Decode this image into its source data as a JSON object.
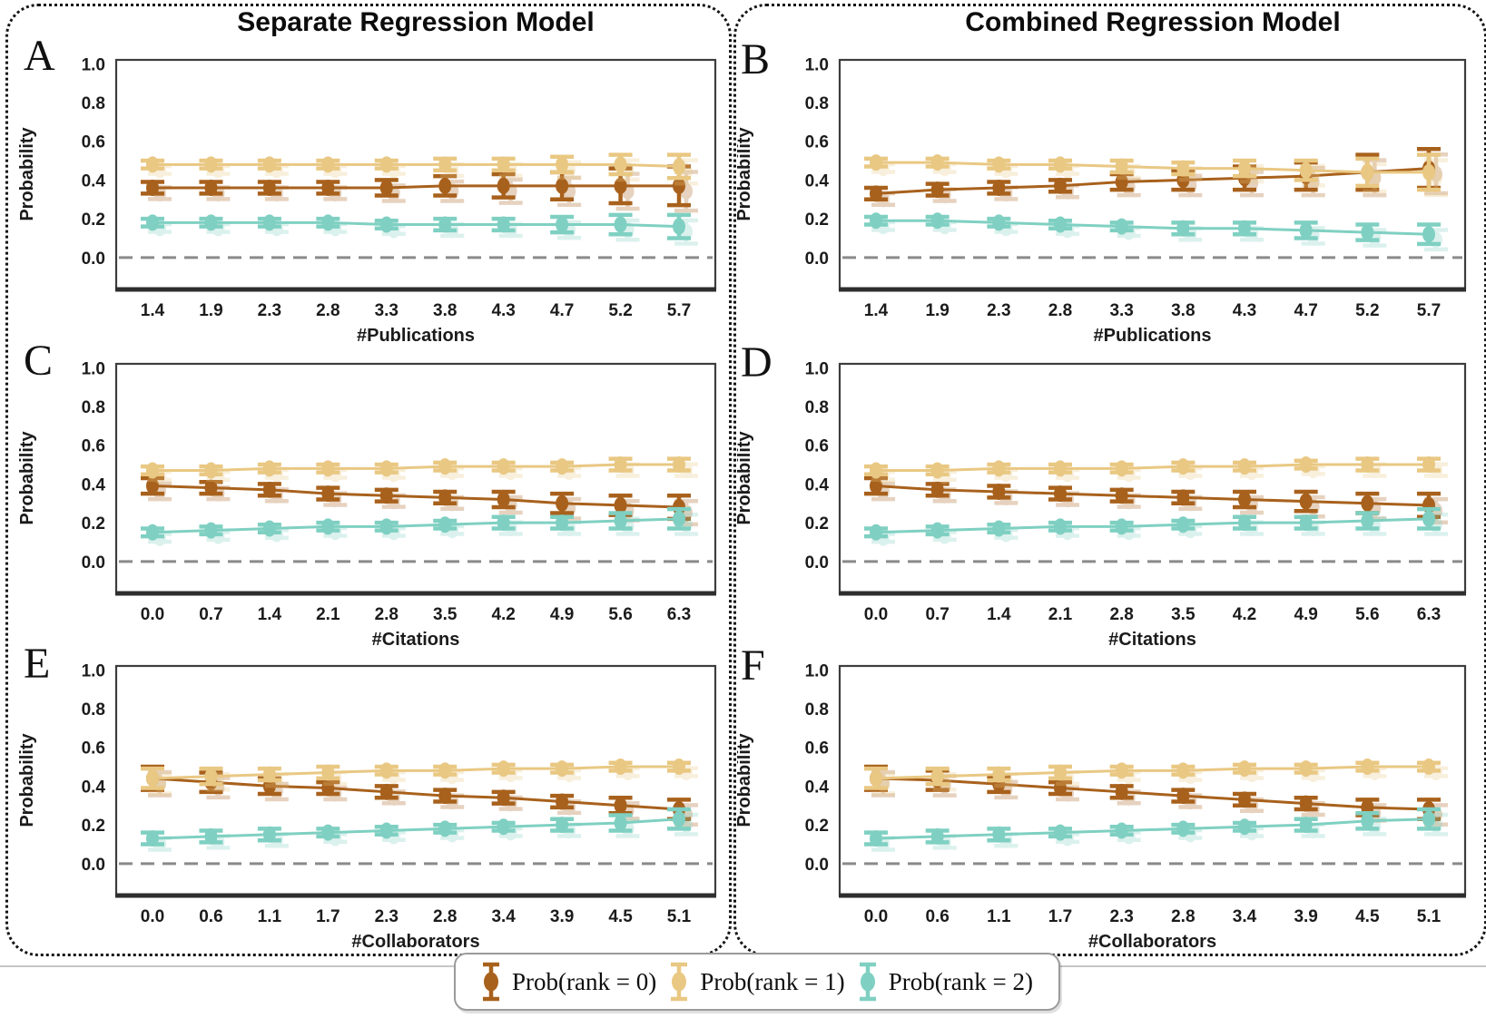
{
  "figure": {
    "column_titles": [
      "Separate Regression Model",
      "Combined Regression Model"
    ]
  },
  "y_axis": {
    "label": "Probability",
    "ticks": [
      "1.0",
      "0.8",
      "0.6",
      "0.4",
      "0.2",
      "0.0"
    ],
    "range": [
      -0.16,
      1.02
    ],
    "zero_line": "dashed"
  },
  "legend": {
    "items": [
      {
        "key": "rank0",
        "label": "Prob(rank = 0)",
        "color": "#A8611C"
      },
      {
        "key": "rank1",
        "label": "Prob(rank = 1)",
        "color": "#E9C883"
      },
      {
        "key": "rank2",
        "label": "Prob(rank = 2)",
        "color": "#7FD0C2"
      }
    ]
  },
  "chart_data": [
    {
      "type": "line",
      "letter": "A",
      "model": "Separate",
      "xlabel": "#Publications",
      "x": [
        "1.4",
        "1.9",
        "2.3",
        "2.8",
        "3.3",
        "3.8",
        "4.3",
        "4.7",
        "5.2",
        "5.7"
      ],
      "series": [
        {
          "key": "rank0",
          "name": "Prob(rank = 0)",
          "color": "#A8611C",
          "values": [
            0.36,
            0.36,
            0.36,
            0.36,
            0.36,
            0.37,
            0.37,
            0.37,
            0.37,
            0.37
          ],
          "errors": [
            0.03,
            0.03,
            0.03,
            0.03,
            0.04,
            0.05,
            0.06,
            0.07,
            0.09,
            0.1
          ]
        },
        {
          "key": "rank1",
          "name": "Prob(rank = 1)",
          "color": "#E9C883",
          "values": [
            0.48,
            0.48,
            0.48,
            0.48,
            0.48,
            0.48,
            0.48,
            0.48,
            0.48,
            0.47
          ],
          "errors": [
            0.02,
            0.02,
            0.02,
            0.02,
            0.02,
            0.03,
            0.03,
            0.04,
            0.05,
            0.06
          ]
        },
        {
          "key": "rank2",
          "name": "Prob(rank = 2)",
          "color": "#7FD0C2",
          "values": [
            0.18,
            0.18,
            0.18,
            0.18,
            0.17,
            0.17,
            0.17,
            0.17,
            0.17,
            0.16
          ],
          "errors": [
            0.02,
            0.02,
            0.02,
            0.02,
            0.02,
            0.03,
            0.03,
            0.04,
            0.05,
            0.06
          ]
        }
      ]
    },
    {
      "type": "line",
      "letter": "B",
      "model": "Combined",
      "xlabel": "#Publications",
      "x": [
        "1.4",
        "1.9",
        "2.3",
        "2.8",
        "3.3",
        "3.8",
        "4.3",
        "4.7",
        "5.2",
        "5.7"
      ],
      "series": [
        {
          "key": "rank0",
          "name": "Prob(rank = 0)",
          "color": "#A8611C",
          "values": [
            0.33,
            0.35,
            0.36,
            0.37,
            0.39,
            0.4,
            0.41,
            0.42,
            0.44,
            0.46
          ],
          "errors": [
            0.03,
            0.03,
            0.03,
            0.03,
            0.04,
            0.05,
            0.06,
            0.07,
            0.09,
            0.1
          ]
        },
        {
          "key": "rank1",
          "name": "Prob(rank = 1)",
          "color": "#E9C883",
          "values": [
            0.49,
            0.49,
            0.48,
            0.48,
            0.47,
            0.46,
            0.46,
            0.45,
            0.44,
            0.44
          ],
          "errors": [
            0.02,
            0.02,
            0.02,
            0.02,
            0.03,
            0.03,
            0.04,
            0.05,
            0.07,
            0.09
          ]
        },
        {
          "key": "rank2",
          "name": "Prob(rank = 2)",
          "color": "#7FD0C2",
          "values": [
            0.19,
            0.19,
            0.18,
            0.17,
            0.16,
            0.15,
            0.15,
            0.14,
            0.13,
            0.12
          ],
          "errors": [
            0.02,
            0.02,
            0.02,
            0.02,
            0.02,
            0.03,
            0.03,
            0.04,
            0.04,
            0.05
          ]
        }
      ]
    },
    {
      "type": "line",
      "letter": "C",
      "model": "Separate",
      "xlabel": "#Citations",
      "x": [
        "0.0",
        "0.7",
        "1.4",
        "2.1",
        "2.8",
        "3.5",
        "4.2",
        "4.9",
        "5.6",
        "6.3"
      ],
      "series": [
        {
          "key": "rank0",
          "name": "Prob(rank = 0)",
          "color": "#A8611C",
          "values": [
            0.39,
            0.38,
            0.37,
            0.35,
            0.34,
            0.33,
            0.32,
            0.3,
            0.29,
            0.28
          ],
          "errors": [
            0.04,
            0.03,
            0.03,
            0.03,
            0.03,
            0.03,
            0.04,
            0.05,
            0.05,
            0.06
          ]
        },
        {
          "key": "rank1",
          "name": "Prob(rank = 1)",
          "color": "#E9C883",
          "values": [
            0.47,
            0.47,
            0.48,
            0.48,
            0.48,
            0.49,
            0.49,
            0.49,
            0.5,
            0.5
          ],
          "errors": [
            0.02,
            0.02,
            0.02,
            0.02,
            0.02,
            0.02,
            0.02,
            0.02,
            0.03,
            0.03
          ]
        },
        {
          "key": "rank2",
          "name": "Prob(rank = 2)",
          "color": "#7FD0C2",
          "values": [
            0.15,
            0.16,
            0.17,
            0.18,
            0.18,
            0.19,
            0.2,
            0.2,
            0.21,
            0.22
          ],
          "errors": [
            0.02,
            0.02,
            0.02,
            0.02,
            0.02,
            0.02,
            0.03,
            0.03,
            0.04,
            0.05
          ]
        }
      ]
    },
    {
      "type": "line",
      "letter": "D",
      "model": "Combined",
      "xlabel": "#Citations",
      "x": [
        "0.0",
        "0.7",
        "1.4",
        "2.1",
        "2.8",
        "3.5",
        "4.2",
        "4.9",
        "5.6",
        "6.3"
      ],
      "series": [
        {
          "key": "rank0",
          "name": "Prob(rank = 0)",
          "color": "#A8611C",
          "values": [
            0.39,
            0.37,
            0.36,
            0.35,
            0.34,
            0.33,
            0.32,
            0.31,
            0.3,
            0.29
          ],
          "errors": [
            0.04,
            0.03,
            0.03,
            0.03,
            0.03,
            0.03,
            0.04,
            0.05,
            0.05,
            0.06
          ]
        },
        {
          "key": "rank1",
          "name": "Prob(rank = 1)",
          "color": "#E9C883",
          "values": [
            0.47,
            0.47,
            0.48,
            0.48,
            0.48,
            0.49,
            0.49,
            0.5,
            0.5,
            0.5
          ],
          "errors": [
            0.02,
            0.02,
            0.02,
            0.02,
            0.02,
            0.02,
            0.02,
            0.02,
            0.03,
            0.03
          ]
        },
        {
          "key": "rank2",
          "name": "Prob(rank = 2)",
          "color": "#7FD0C2",
          "values": [
            0.15,
            0.16,
            0.17,
            0.18,
            0.18,
            0.19,
            0.2,
            0.2,
            0.21,
            0.22
          ],
          "errors": [
            0.02,
            0.02,
            0.02,
            0.02,
            0.02,
            0.02,
            0.03,
            0.03,
            0.04,
            0.05
          ]
        }
      ]
    },
    {
      "type": "line",
      "letter": "E",
      "model": "Separate",
      "xlabel": "#Collaborators",
      "x": [
        "0.0",
        "0.6",
        "1.1",
        "1.7",
        "2.3",
        "2.8",
        "3.4",
        "3.9",
        "4.5",
        "5.1"
      ],
      "series": [
        {
          "key": "rank0",
          "name": "Prob(rank = 0)",
          "color": "#A8611C",
          "values": [
            0.44,
            0.42,
            0.4,
            0.39,
            0.37,
            0.35,
            0.34,
            0.32,
            0.3,
            0.28
          ],
          "errors": [
            0.06,
            0.05,
            0.04,
            0.03,
            0.03,
            0.03,
            0.03,
            0.03,
            0.04,
            0.05
          ]
        },
        {
          "key": "rank1",
          "name": "Prob(rank = 1)",
          "color": "#E9C883",
          "values": [
            0.44,
            0.45,
            0.46,
            0.47,
            0.48,
            0.48,
            0.49,
            0.49,
            0.5,
            0.5
          ],
          "errors": [
            0.05,
            0.04,
            0.03,
            0.03,
            0.02,
            0.02,
            0.02,
            0.02,
            0.02,
            0.02
          ]
        },
        {
          "key": "rank2",
          "name": "Prob(rank = 2)",
          "color": "#7FD0C2",
          "values": [
            0.13,
            0.14,
            0.15,
            0.16,
            0.17,
            0.18,
            0.19,
            0.2,
            0.21,
            0.23
          ],
          "errors": [
            0.03,
            0.03,
            0.03,
            0.02,
            0.02,
            0.02,
            0.02,
            0.03,
            0.04,
            0.05
          ]
        }
      ]
    },
    {
      "type": "line",
      "letter": "F",
      "model": "Combined",
      "xlabel": "#Collaborators",
      "x": [
        "0.0",
        "0.6",
        "1.1",
        "1.7",
        "2.3",
        "2.8",
        "3.4",
        "3.9",
        "4.5",
        "5.1"
      ],
      "series": [
        {
          "key": "rank0",
          "name": "Prob(rank = 0)",
          "color": "#A8611C",
          "values": [
            0.44,
            0.43,
            0.41,
            0.39,
            0.37,
            0.35,
            0.33,
            0.31,
            0.29,
            0.28
          ],
          "errors": [
            0.06,
            0.05,
            0.04,
            0.03,
            0.03,
            0.03,
            0.03,
            0.03,
            0.04,
            0.05
          ]
        },
        {
          "key": "rank1",
          "name": "Prob(rank = 1)",
          "color": "#E9C883",
          "values": [
            0.44,
            0.45,
            0.46,
            0.47,
            0.48,
            0.48,
            0.49,
            0.49,
            0.5,
            0.5
          ],
          "errors": [
            0.05,
            0.04,
            0.03,
            0.03,
            0.02,
            0.02,
            0.02,
            0.02,
            0.02,
            0.02
          ]
        },
        {
          "key": "rank2",
          "name": "Prob(rank = 2)",
          "color": "#7FD0C2",
          "values": [
            0.13,
            0.14,
            0.15,
            0.16,
            0.17,
            0.18,
            0.19,
            0.2,
            0.22,
            0.23
          ],
          "errors": [
            0.03,
            0.03,
            0.03,
            0.02,
            0.02,
            0.02,
            0.02,
            0.03,
            0.04,
            0.05
          ]
        }
      ]
    }
  ]
}
